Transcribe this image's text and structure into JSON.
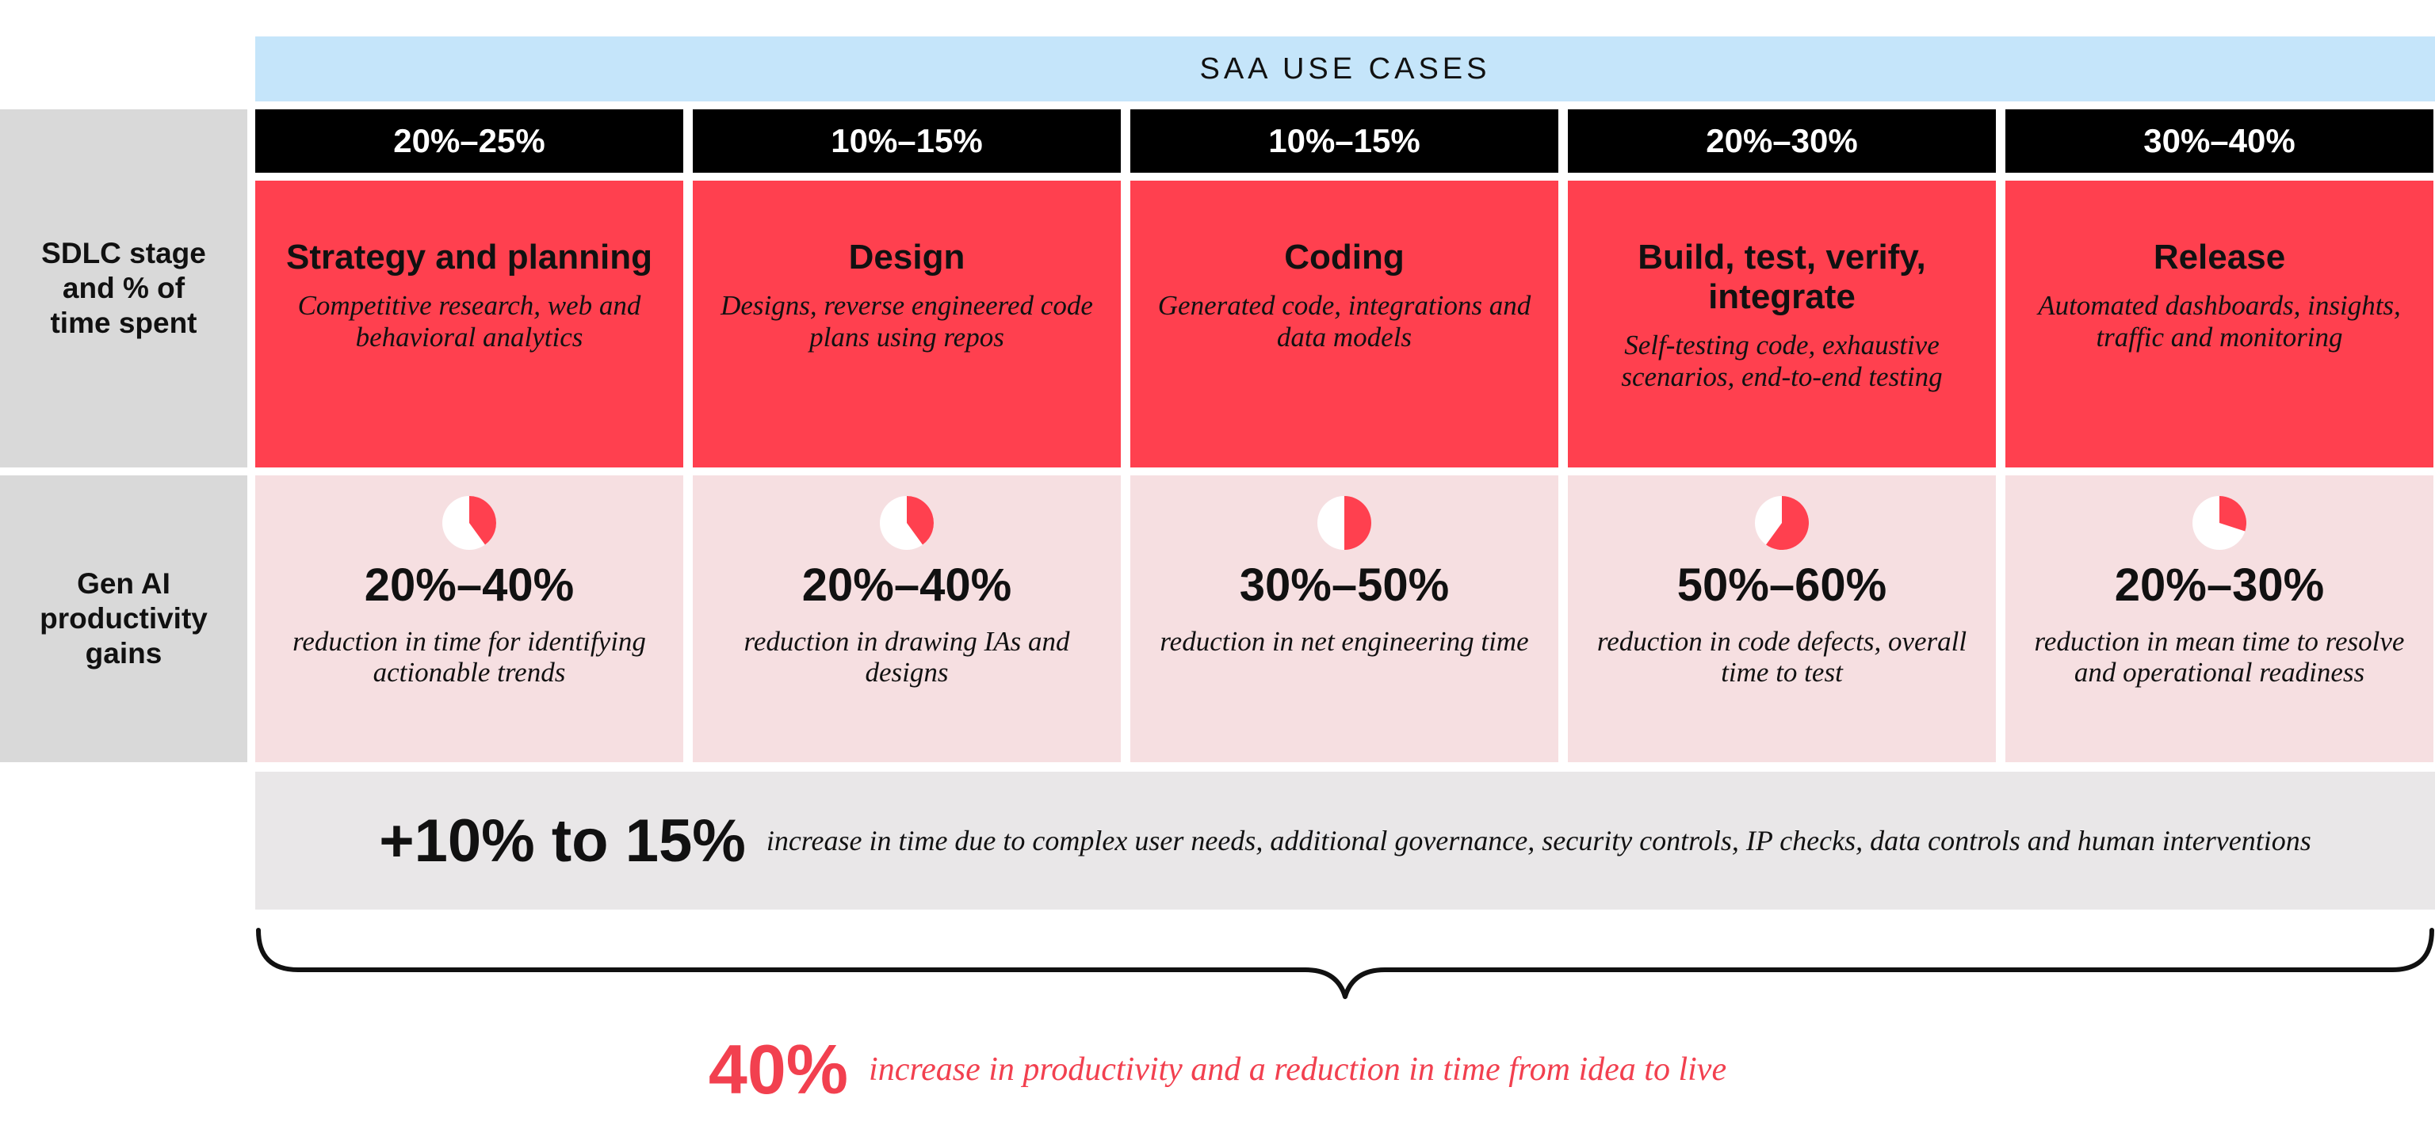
{
  "header": {
    "title": "SAA USE CASES"
  },
  "row_labels": {
    "stage": "SDLC stage and % of time spent",
    "gains": "Gen AI productivity gains"
  },
  "colors": {
    "banner": "#c5e5fa",
    "stage_fill": "#ff404f",
    "gain_fill": "#f6dfe1",
    "pie_fill": "#ff404f",
    "accent_text": "#f2404f"
  },
  "columns": [
    {
      "time_spent": "20%–25%",
      "stage": "Strategy and planning",
      "stage_desc": "Competitive research, web and behavioral analytics",
      "gain": "20%–40%",
      "gain_fraction": 0.4,
      "gain_desc": "reduction in time for identifying actionable trends"
    },
    {
      "time_spent": "10%–15%",
      "stage": "Design",
      "stage_desc": "Designs, reverse engineered code plans using repos",
      "gain": "20%–40%",
      "gain_fraction": 0.4,
      "gain_desc": "reduction in drawing IAs and designs"
    },
    {
      "time_spent": "10%–15%",
      "stage": "Coding",
      "stage_desc": "Generated code, integrations and data models",
      "gain": "30%–50%",
      "gain_fraction": 0.5,
      "gain_desc": "reduction in net engineering time"
    },
    {
      "time_spent": "20%–30%",
      "stage": "Build, test, verify, integrate",
      "stage_desc": "Self-testing code, exhaustive scenarios, end-to-end testing",
      "gain": "50%–60%",
      "gain_fraction": 0.6,
      "gain_desc": "reduction in code defects, overall time to test"
    },
    {
      "time_spent": "30%–40%",
      "stage": "Release",
      "stage_desc": "Automated dashboards, insights, traffic and monitoring",
      "gain": "20%–30%",
      "gain_fraction": 0.3,
      "gain_desc": "reduction in mean time to resolve and operational readiness"
    }
  ],
  "overhead": {
    "value": "+10% to 15%",
    "desc": "increase in time due to complex user needs, additional governance, security controls, IP checks, data controls and human interventions"
  },
  "summary": {
    "value": "40%",
    "desc": "increase in productivity and a reduction in time from idea to live"
  }
}
